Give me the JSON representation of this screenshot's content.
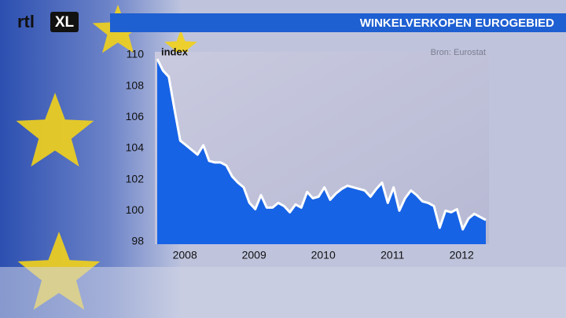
{
  "logo": {
    "left": "rtl",
    "right": "XL"
  },
  "chart_data": {
    "type": "area",
    "title": "WINKELVERKOPEN EUROGEBIED",
    "ylabel": "index",
    "source": "Bron: Eurostat",
    "color": "#1763e6",
    "line_color": "#ffffff",
    "xlim": [
      2008,
      2012.75
    ],
    "xticks": [
      {
        "value": 2008.4,
        "label": "2008"
      },
      {
        "value": 2009.4,
        "label": "2009"
      },
      {
        "value": 2010.4,
        "label": "2010"
      },
      {
        "value": 2011.4,
        "label": "2011"
      },
      {
        "value": 2012.4,
        "label": "2012"
      }
    ],
    "ylim": [
      98,
      110
    ],
    "yticks": [
      98,
      100,
      102,
      104,
      106,
      108,
      110
    ],
    "x": [
      2008,
      2008.083,
      2008.167,
      2008.25,
      2008.333,
      2008.417,
      2008.5,
      2008.583,
      2008.667,
      2008.75,
      2008.833,
      2008.917,
      2009,
      2009.083,
      2009.167,
      2009.25,
      2009.333,
      2009.417,
      2009.5,
      2009.583,
      2009.667,
      2009.75,
      2009.833,
      2009.917,
      2010,
      2010.083,
      2010.167,
      2010.25,
      2010.333,
      2010.417,
      2010.5,
      2010.583,
      2010.667,
      2010.75,
      2010.833,
      2010.917,
      2011,
      2011.083,
      2011.167,
      2011.25,
      2011.333,
      2011.417,
      2011.5,
      2011.583,
      2011.667,
      2011.75,
      2011.833,
      2011.917,
      2012,
      2012.083,
      2012.167,
      2012.25,
      2012.333,
      2012.417,
      2012.5,
      2012.583,
      2012.667,
      2012.75
    ],
    "values": [
      109.75,
      109.0,
      108.6,
      106.5,
      104.5,
      104.2,
      103.9,
      103.6,
      104.2,
      103.2,
      103.1,
      103.1,
      102.9,
      102.2,
      101.8,
      101.5,
      100.5,
      100.1,
      101.0,
      100.2,
      100.2,
      100.5,
      100.3,
      99.9,
      100.4,
      100.2,
      101.2,
      100.8,
      100.9,
      101.5,
      100.7,
      101.1,
      101.4,
      101.6,
      101.5,
      101.4,
      101.3,
      100.9,
      101.4,
      101.8,
      100.5,
      101.5,
      100.0,
      100.8,
      101.3,
      101.0,
      100.6,
      100.5,
      100.3,
      98.9,
      100.0,
      99.9,
      100.1,
      98.8,
      99.5,
      99.8,
      99.6,
      99.4
    ]
  }
}
